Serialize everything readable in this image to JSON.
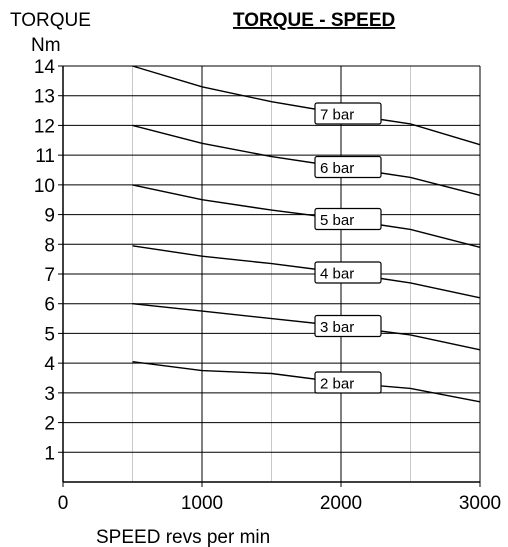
{
  "chart_data": {
    "type": "line",
    "title": "TORQUE - SPEED",
    "ylabel_line1": "TORQUE",
    "ylabel_line2": "Nm",
    "xlabel": "SPEED revs per min",
    "xlim": [
      0,
      3000
    ],
    "ylim": [
      0,
      14
    ],
    "x_ticks": [
      "0",
      "1000",
      "2000",
      "3000"
    ],
    "y_ticks": [
      "1",
      "2",
      "3",
      "4",
      "5",
      "6",
      "7",
      "8",
      "9",
      "10",
      "11",
      "12",
      "13",
      "14"
    ],
    "grid": true,
    "series": [
      {
        "name": "7 bar",
        "x": [
          500,
          1000,
          1500,
          2000,
          2500,
          3000
        ],
        "values": [
          14.0,
          13.3,
          12.8,
          12.4,
          12.05,
          11.35
        ]
      },
      {
        "name": "6 bar",
        "x": [
          500,
          1000,
          1500,
          2000,
          2500,
          3000
        ],
        "values": [
          12.0,
          11.4,
          10.95,
          10.6,
          10.25,
          9.65
        ]
      },
      {
        "name": "5 bar",
        "x": [
          500,
          1000,
          1500,
          2000,
          2500,
          3000
        ],
        "values": [
          10.0,
          9.5,
          9.15,
          8.85,
          8.5,
          7.9
        ]
      },
      {
        "name": "4 bar",
        "x": [
          500,
          1000,
          1500,
          2000,
          2500,
          3000
        ],
        "values": [
          7.95,
          7.6,
          7.35,
          7.05,
          6.7,
          6.2
        ]
      },
      {
        "name": "3 bar",
        "x": [
          500,
          1000,
          1500,
          2000,
          2500,
          3000
        ],
        "values": [
          6.0,
          5.75,
          5.5,
          5.25,
          4.95,
          4.45
        ]
      },
      {
        "name": "2 bar",
        "x": [
          500,
          1000,
          1500,
          2000,
          2500,
          3000
        ],
        "values": [
          4.05,
          3.75,
          3.65,
          3.35,
          3.15,
          2.7
        ]
      }
    ]
  }
}
